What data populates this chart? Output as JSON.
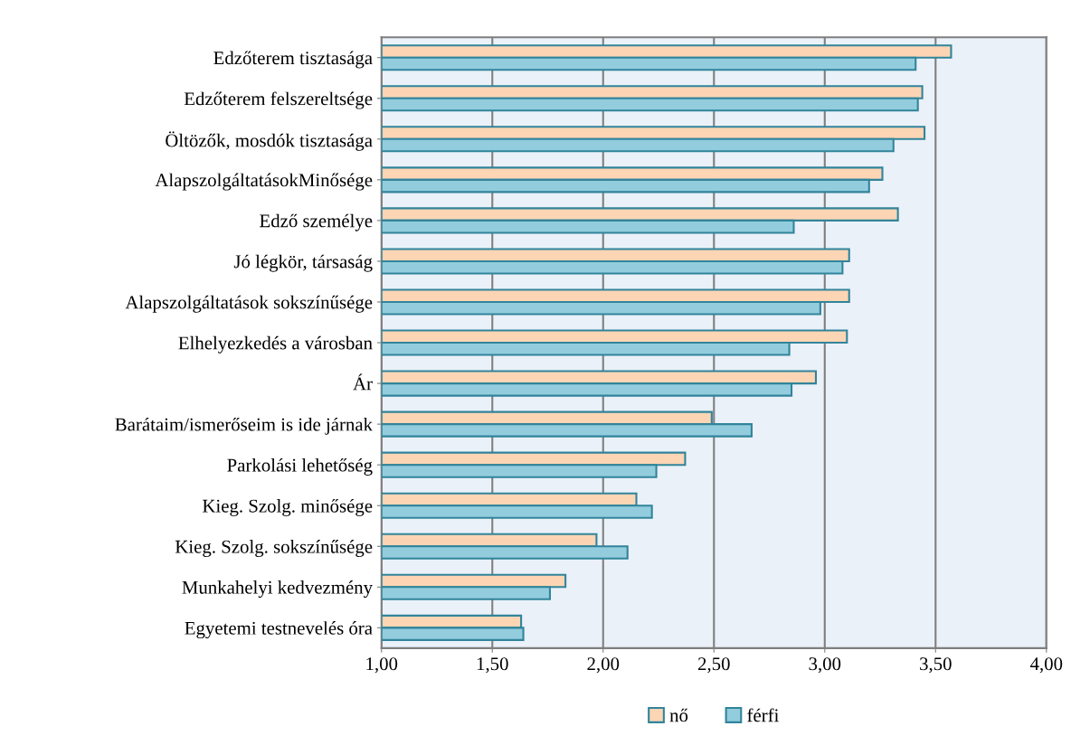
{
  "chart_data": {
    "type": "bar",
    "orientation": "horizontal",
    "categories": [
      "Edzőterem tisztasága",
      "Edzőterem felszereltsége",
      "Öltözők, mosdók tisztasága",
      "AlapszolgáltatásokMinősége",
      "Edző személye",
      "Jó légkör, társaság",
      "Alapszolgáltatások sokszínűsége",
      "Elhelyezkedés a városban",
      "Ár",
      "Barátaim/ismerőseim is ide járnak",
      "Parkolási lehetőség",
      "Kieg. Szolg. minősége",
      "Kieg. Szolg. sokszínűsége",
      "Munkahelyi kedvezmény",
      "Egyetemi testnevelés óra"
    ],
    "series": [
      {
        "name": "nő",
        "color": "#fcd5b4",
        "values": [
          3.57,
          3.44,
          3.45,
          3.26,
          3.33,
          3.11,
          3.11,
          3.1,
          2.96,
          2.49,
          2.37,
          2.15,
          1.97,
          1.83,
          1.63
        ]
      },
      {
        "name": "férfi",
        "color": "#93cddd",
        "values": [
          3.41,
          3.42,
          3.31,
          3.2,
          2.86,
          3.08,
          2.98,
          2.84,
          2.85,
          2.67,
          2.24,
          2.22,
          2.11,
          1.76,
          1.64
        ]
      }
    ],
    "xlim": [
      1,
      4
    ],
    "xticks": [
      {
        "value": 1,
        "label": "1,00"
      },
      {
        "value": 1.5,
        "label": "1,50"
      },
      {
        "value": 2,
        "label": "2,00"
      },
      {
        "value": 2.5,
        "label": "2,50"
      },
      {
        "value": 3,
        "label": "3,00"
      },
      {
        "value": 3.5,
        "label": "3,50"
      },
      {
        "value": 4,
        "label": "4,00"
      }
    ],
    "grid": "x",
    "legend": "bottom"
  }
}
